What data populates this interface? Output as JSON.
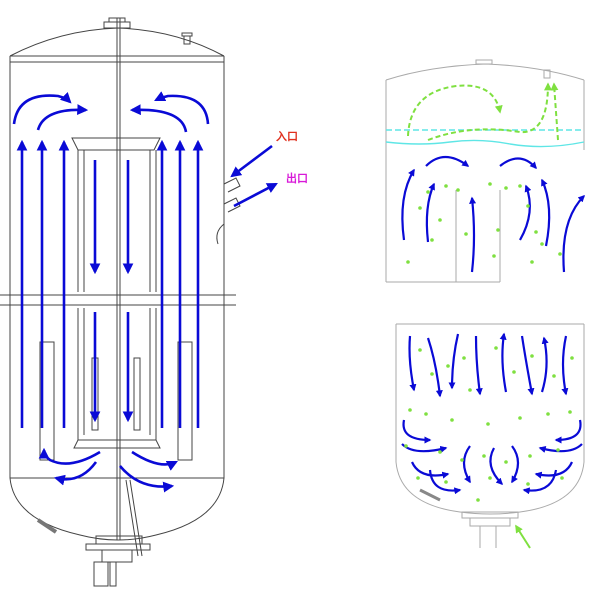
{
  "labels": {
    "inlet": "入口",
    "outlet": "出口"
  },
  "colors": {
    "flow_blue": "#0a0ad6",
    "inlet_label": "#e0301e",
    "outlet_label": "#d81ad8",
    "particle_green": "#7fe040",
    "liquid_cyan": "#5fe6e6",
    "outline": "#444444",
    "light_outline": "#aaaaaa"
  },
  "icons": {
    "arrow": "flow-arrow-icon",
    "nozzle": "nozzle-icon"
  }
}
